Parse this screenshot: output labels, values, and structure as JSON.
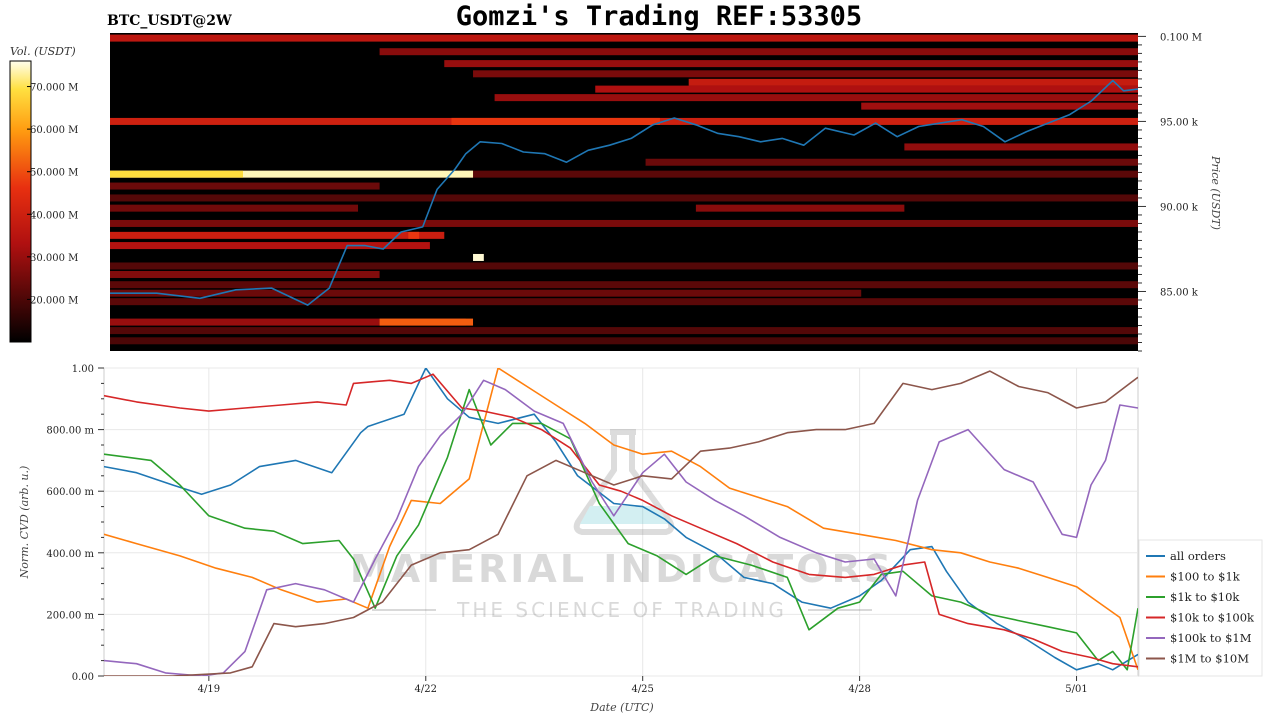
{
  "header": {
    "symbol": "BTC_USDT@2W",
    "title": "Gomzi's Trading REF:53305"
  },
  "watermark": {
    "line1": "MATERIAL INDICATORS",
    "line2": "THE SCIENCE OF TRADING"
  },
  "chart_data": [
    {
      "type": "heatmap",
      "colorbar": {
        "label": "Vol. (USDT)",
        "ticks": [
          "70.000 M",
          "60.000 M",
          "50.000 M",
          "40.000 M",
          "30.000 M",
          "20.000 M"
        ],
        "tick_values": [
          70,
          60,
          50,
          40,
          30,
          20
        ],
        "range": [
          10,
          76
        ]
      },
      "ylabel": "Price (USDT)",
      "yticks": [
        "0.100 M",
        "95.00 k",
        "90.00 k",
        "85.00 k"
      ],
      "ytick_values": [
        100,
        95,
        90,
        85
      ],
      "ylim": [
        81.5,
        100.2
      ],
      "xlim": [
        17.55,
        31.85
      ],
      "price_line": {
        "color": "#1f77b4",
        "x": [
          17.55,
          18.2,
          18.8,
          19.3,
          19.8,
          20.3,
          20.6,
          20.85,
          21.1,
          21.35,
          21.6,
          21.9,
          22.1,
          22.35,
          22.5,
          22.7,
          23.0,
          23.3,
          23.6,
          23.9,
          24.2,
          24.5,
          24.8,
          25.1,
          25.4,
          25.7,
          26.0,
          26.3,
          26.6,
          26.9,
          27.2,
          27.5,
          27.9,
          28.2,
          28.5,
          28.8,
          29.1,
          29.4,
          29.7,
          30.0,
          30.3,
          30.6,
          30.9,
          31.2,
          31.5,
          31.65,
          31.85
        ],
        "y": [
          84.9,
          84.9,
          84.6,
          85.1,
          85.2,
          84.2,
          85.2,
          87.7,
          87.7,
          87.5,
          88.5,
          88.8,
          91.0,
          92.2,
          93.1,
          93.8,
          93.7,
          93.2,
          93.1,
          92.6,
          93.3,
          93.6,
          94.0,
          94.8,
          95.2,
          94.8,
          94.3,
          94.1,
          93.8,
          94.0,
          93.6,
          94.6,
          94.2,
          94.9,
          94.1,
          94.7,
          94.9,
          95.1,
          94.7,
          93.8,
          94.4,
          94.9,
          95.4,
          96.2,
          97.4,
          96.8,
          96.9
        ]
      },
      "bands": [
        {
          "y": 99.9,
          "x0": 17.55,
          "x1": 31.85,
          "level": 36
        },
        {
          "y": 99.1,
          "x0": 21.3,
          "x1": 31.85,
          "level": 28
        },
        {
          "y": 98.4,
          "x0": 22.2,
          "x1": 31.85,
          "level": 30
        },
        {
          "y": 97.8,
          "x0": 22.6,
          "x1": 31.85,
          "level": 26
        },
        {
          "y": 97.3,
          "x0": 25.6,
          "x1": 31.85,
          "level": 38
        },
        {
          "y": 96.9,
          "x0": 24.3,
          "x1": 31.85,
          "level": 33
        },
        {
          "y": 96.4,
          "x0": 22.9,
          "x1": 31.85,
          "level": 30
        },
        {
          "y": 95.9,
          "x0": 28.0,
          "x1": 31.85,
          "level": 31
        },
        {
          "y": 95.0,
          "x0": 17.55,
          "x1": 31.85,
          "level": 40
        },
        {
          "y": 95.0,
          "x0": 22.3,
          "x1": 25.2,
          "level": 47
        },
        {
          "y": 93.5,
          "x0": 28.6,
          "x1": 31.85,
          "level": 29
        },
        {
          "y": 92.6,
          "x0": 25.0,
          "x1": 31.85,
          "level": 24
        },
        {
          "y": 91.9,
          "x0": 17.55,
          "x1": 31.85,
          "level": 22
        },
        {
          "y": 91.9,
          "x0": 17.55,
          "x1": 22.6,
          "level": 74
        },
        {
          "y": 91.9,
          "x0": 17.55,
          "x1": 19.4,
          "level": 69
        },
        {
          "y": 91.2,
          "x0": 17.55,
          "x1": 21.3,
          "level": 24
        },
        {
          "y": 90.5,
          "x0": 17.55,
          "x1": 31.85,
          "level": 21
        },
        {
          "y": 89.9,
          "x0": 25.7,
          "x1": 28.6,
          "level": 28
        },
        {
          "y": 89.9,
          "x0": 17.55,
          "x1": 21.0,
          "level": 25
        },
        {
          "y": 89.0,
          "x0": 17.55,
          "x1": 31.85,
          "level": 26
        },
        {
          "y": 88.3,
          "x0": 17.55,
          "x1": 22.2,
          "level": 39
        },
        {
          "y": 88.3,
          "x0": 21.7,
          "x1": 21.85,
          "level": 47
        },
        {
          "y": 87.7,
          "x0": 17.55,
          "x1": 22.0,
          "level": 34
        },
        {
          "y": 87.0,
          "x0": 22.6,
          "x1": 22.75,
          "level": 75
        },
        {
          "y": 86.5,
          "x0": 17.55,
          "x1": 31.85,
          "level": 21
        },
        {
          "y": 86.0,
          "x0": 17.55,
          "x1": 21.3,
          "level": 27
        },
        {
          "y": 85.4,
          "x0": 17.55,
          "x1": 31.85,
          "level": 22
        },
        {
          "y": 84.9,
          "x0": 17.55,
          "x1": 28.0,
          "level": 24
        },
        {
          "y": 84.4,
          "x0": 17.55,
          "x1": 31.85,
          "level": 22
        },
        {
          "y": 83.2,
          "x0": 17.55,
          "x1": 22.5,
          "level": 30
        },
        {
          "y": 83.2,
          "x0": 21.3,
          "x1": 22.6,
          "level": 52
        },
        {
          "y": 82.7,
          "x0": 17.55,
          "x1": 31.85,
          "level": 21
        },
        {
          "y": 82.1,
          "x0": 17.55,
          "x1": 31.85,
          "level": 20
        }
      ]
    },
    {
      "type": "line",
      "xlabel": "Date (UTC)",
      "ylabel": "Norm. CVD (arb. u.)",
      "xticks": [
        "4/19",
        "4/22",
        "4/25",
        "4/28",
        "5/01"
      ],
      "xtick_values": [
        19,
        22,
        25,
        28,
        31
      ],
      "yticks": [
        "1.00",
        "800.00 m",
        "600.00 m",
        "400.00 m",
        "200.00 m",
        "0.00"
      ],
      "ytick_values": [
        1.0,
        0.8,
        0.6,
        0.4,
        0.2,
        0.0
      ],
      "xlim": [
        17.55,
        31.85
      ],
      "ylim": [
        0,
        1
      ],
      "grid": true,
      "legend_position": "right",
      "series": [
        {
          "name": "all orders",
          "color": "#1f77b4",
          "x": [
            17.55,
            18.0,
            18.5,
            18.9,
            19.3,
            19.7,
            20.2,
            20.7,
            21.1,
            21.2,
            21.7,
            22.0,
            22.3,
            22.6,
            23.0,
            23.5,
            23.8,
            24.1,
            24.6,
            25.0,
            25.3,
            25.6,
            26.0,
            26.4,
            26.8,
            27.2,
            27.6,
            28.0,
            28.3,
            28.7,
            29.0,
            29.2,
            29.5,
            29.9,
            30.3,
            30.7,
            31.0,
            31.3,
            31.5,
            31.85
          ],
          "y": [
            0.68,
            0.66,
            0.62,
            0.59,
            0.62,
            0.68,
            0.7,
            0.66,
            0.79,
            0.81,
            0.85,
            1.0,
            0.9,
            0.84,
            0.82,
            0.85,
            0.76,
            0.65,
            0.56,
            0.55,
            0.51,
            0.45,
            0.4,
            0.32,
            0.3,
            0.24,
            0.22,
            0.26,
            0.31,
            0.41,
            0.42,
            0.34,
            0.24,
            0.17,
            0.12,
            0.06,
            0.02,
            0.04,
            0.02,
            0.07
          ]
        },
        {
          "name": "$100 to $1k",
          "color": "#ff7f0e",
          "x": [
            17.55,
            18.0,
            18.6,
            19.1,
            19.6,
            20.0,
            20.5,
            20.9,
            21.2,
            21.5,
            21.8,
            22.2,
            22.6,
            23.0,
            23.4,
            23.8,
            24.2,
            24.6,
            25.0,
            25.4,
            25.8,
            26.2,
            26.6,
            27.0,
            27.5,
            28.0,
            28.5,
            29.0,
            29.4,
            29.8,
            30.2,
            30.6,
            31.0,
            31.3,
            31.6,
            31.85
          ],
          "y": [
            0.46,
            0.43,
            0.39,
            0.35,
            0.32,
            0.28,
            0.24,
            0.25,
            0.22,
            0.42,
            0.57,
            0.56,
            0.64,
            1.0,
            0.94,
            0.88,
            0.82,
            0.75,
            0.72,
            0.73,
            0.68,
            0.61,
            0.58,
            0.55,
            0.48,
            0.46,
            0.44,
            0.41,
            0.4,
            0.37,
            0.35,
            0.32,
            0.29,
            0.24,
            0.19,
            0.02
          ]
        },
        {
          "name": "$1k to $10k",
          "color": "#2ca02c",
          "x": [
            17.55,
            18.2,
            18.6,
            19.0,
            19.5,
            19.9,
            20.3,
            20.8,
            21.0,
            21.3,
            21.6,
            21.9,
            22.3,
            22.6,
            22.9,
            23.2,
            23.6,
            24.0,
            24.4,
            24.8,
            25.2,
            25.6,
            26.0,
            26.5,
            27.0,
            27.3,
            27.7,
            28.0,
            28.3,
            28.6,
            29.0,
            29.4,
            29.8,
            30.2,
            30.6,
            31.0,
            31.3,
            31.5,
            31.7,
            31.85
          ],
          "y": [
            0.72,
            0.7,
            0.62,
            0.52,
            0.48,
            0.47,
            0.43,
            0.44,
            0.38,
            0.22,
            0.39,
            0.49,
            0.71,
            0.93,
            0.75,
            0.82,
            0.82,
            0.77,
            0.56,
            0.43,
            0.39,
            0.33,
            0.39,
            0.36,
            0.32,
            0.15,
            0.22,
            0.24,
            0.33,
            0.34,
            0.26,
            0.24,
            0.2,
            0.18,
            0.16,
            0.14,
            0.05,
            0.08,
            0.02,
            0.22
          ]
        },
        {
          "name": "$10k to $100k",
          "color": "#d62728",
          "x": [
            17.55,
            18.0,
            18.6,
            19.0,
            19.5,
            20.0,
            20.5,
            20.9,
            21.0,
            21.5,
            21.8,
            22.1,
            22.5,
            22.8,
            23.2,
            23.6,
            24.0,
            24.4,
            24.7,
            25.0,
            25.4,
            25.8,
            26.3,
            26.8,
            27.3,
            27.8,
            28.2,
            28.6,
            28.9,
            29.1,
            29.5,
            30.0,
            30.4,
            30.8,
            31.2,
            31.5,
            31.85
          ],
          "y": [
            0.91,
            0.89,
            0.87,
            0.86,
            0.87,
            0.88,
            0.89,
            0.88,
            0.95,
            0.96,
            0.95,
            0.98,
            0.87,
            0.86,
            0.84,
            0.8,
            0.74,
            0.62,
            0.6,
            0.57,
            0.52,
            0.48,
            0.43,
            0.37,
            0.33,
            0.32,
            0.33,
            0.36,
            0.37,
            0.2,
            0.17,
            0.15,
            0.12,
            0.08,
            0.06,
            0.04,
            0.03
          ]
        },
        {
          "name": "$100k to $1M",
          "color": "#9467bd",
          "x": [
            17.55,
            18.0,
            18.4,
            18.9,
            19.2,
            19.5,
            19.8,
            20.2,
            20.6,
            21.0,
            21.3,
            21.6,
            21.9,
            22.2,
            22.5,
            22.8,
            23.1,
            23.5,
            23.9,
            24.3,
            24.6,
            25.0,
            25.3,
            25.6,
            26.0,
            26.4,
            26.9,
            27.4,
            27.8,
            28.2,
            28.5,
            28.8,
            29.1,
            29.5,
            30.0,
            30.4,
            30.8,
            31.0,
            31.2,
            31.4,
            31.6,
            31.85
          ],
          "y": [
            0.05,
            0.04,
            0.01,
            0.0,
            0.01,
            0.08,
            0.28,
            0.3,
            0.28,
            0.24,
            0.38,
            0.51,
            0.68,
            0.78,
            0.85,
            0.96,
            0.93,
            0.86,
            0.82,
            0.63,
            0.52,
            0.66,
            0.72,
            0.63,
            0.57,
            0.52,
            0.45,
            0.4,
            0.37,
            0.38,
            0.26,
            0.57,
            0.76,
            0.8,
            0.67,
            0.63,
            0.46,
            0.45,
            0.62,
            0.7,
            0.88,
            0.87
          ]
        },
        {
          "name": "$1M to $10M",
          "color": "#8c564b",
          "x": [
            17.55,
            18.5,
            19.3,
            19.6,
            19.9,
            20.2,
            20.6,
            21.0,
            21.4,
            21.8,
            22.2,
            22.6,
            23.0,
            23.4,
            23.8,
            24.2,
            24.6,
            25.0,
            25.4,
            25.8,
            26.2,
            26.6,
            27.0,
            27.4,
            27.8,
            28.2,
            28.6,
            29.0,
            29.4,
            29.8,
            30.2,
            30.6,
            31.0,
            31.4,
            31.85
          ],
          "y": [
            0.0,
            0.0,
            0.01,
            0.03,
            0.17,
            0.16,
            0.17,
            0.19,
            0.24,
            0.36,
            0.4,
            0.41,
            0.46,
            0.65,
            0.7,
            0.66,
            0.62,
            0.65,
            0.64,
            0.73,
            0.74,
            0.76,
            0.79,
            0.8,
            0.8,
            0.82,
            0.95,
            0.93,
            0.95,
            0.99,
            0.94,
            0.92,
            0.87,
            0.89,
            0.97
          ]
        }
      ]
    }
  ]
}
